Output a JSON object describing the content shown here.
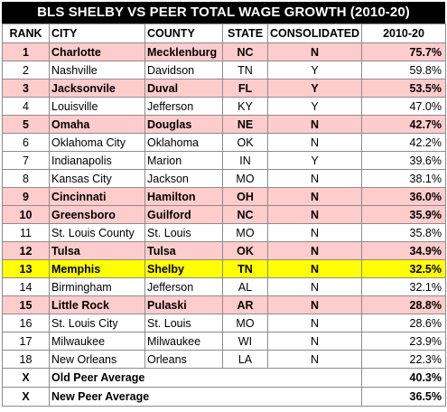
{
  "title": "BLS SHELBY VS PEER TOTAL WAGE GROWTH (2010-20)",
  "headers": {
    "rank": "RANK",
    "city": "CITY",
    "county": "COUNTY",
    "state": "STATE",
    "consolidated": "CONSOLIDATED",
    "growth": "2010-20"
  },
  "rows": [
    {
      "rank": "1",
      "city": "Charlotte",
      "county": "Mecklenburg",
      "state": "NC",
      "consolidated": "N",
      "growth": "75.7%",
      "style": "pink"
    },
    {
      "rank": "2",
      "city": "Nashville",
      "county": "Davidson",
      "state": "TN",
      "consolidated": "Y",
      "growth": "59.8%",
      "style": "plain"
    },
    {
      "rank": "3",
      "city": "Jacksonvile",
      "county": "Duval",
      "state": "FL",
      "consolidated": "Y",
      "growth": "53.5%",
      "style": "pink"
    },
    {
      "rank": "4",
      "city": "Louisville",
      "county": "Jefferson",
      "state": "KY",
      "consolidated": "Y",
      "growth": "47.0%",
      "style": "plain"
    },
    {
      "rank": "5",
      "city": "Omaha",
      "county": "Douglas",
      "state": "NE",
      "consolidated": "N",
      "growth": "42.7%",
      "style": "pink"
    },
    {
      "rank": "6",
      "city": "Oklahoma City",
      "county": "Oklahoma",
      "state": "OK",
      "consolidated": "N",
      "growth": "42.2%",
      "style": "plain"
    },
    {
      "rank": "7",
      "city": "Indianapolis",
      "county": "Marion",
      "state": "IN",
      "consolidated": "Y",
      "growth": "39.6%",
      "style": "plain"
    },
    {
      "rank": "8",
      "city": "Kansas City",
      "county": "Jackson",
      "state": "MO",
      "consolidated": "N",
      "growth": "38.1%",
      "style": "plain"
    },
    {
      "rank": "9",
      "city": "Cincinnati",
      "county": "Hamilton",
      "state": "OH",
      "consolidated": "N",
      "growth": "36.0%",
      "style": "pink"
    },
    {
      "rank": "10",
      "city": "Greensboro",
      "county": "Guilford",
      "state": "NC",
      "consolidated": "N",
      "growth": "35.9%",
      "style": "pink"
    },
    {
      "rank": "11",
      "city": "St. Louis County",
      "county": "St. Louis",
      "state": "MO",
      "consolidated": "N",
      "growth": "35.8%",
      "style": "plain"
    },
    {
      "rank": "12",
      "city": "Tulsa",
      "county": "Tulsa",
      "state": "OK",
      "consolidated": "N",
      "growth": "34.9%",
      "style": "pink"
    },
    {
      "rank": "13",
      "city": "Memphis",
      "county": "Shelby",
      "state": "TN",
      "consolidated": "N",
      "growth": "32.5%",
      "style": "yellow"
    },
    {
      "rank": "14",
      "city": "Birmingham",
      "county": "Jefferson",
      "state": "AL",
      "consolidated": "N",
      "growth": "32.1%",
      "style": "plain"
    },
    {
      "rank": "15",
      "city": "Little Rock",
      "county": "Pulaski",
      "state": "AR",
      "consolidated": "N",
      "growth": "28.8%",
      "style": "pink"
    },
    {
      "rank": "16",
      "city": "St. Louis City",
      "county": "St. Louis",
      "state": "MO",
      "consolidated": "N",
      "growth": "28.6%",
      "style": "plain"
    },
    {
      "rank": "17",
      "city": "Milwaukee",
      "county": "Milwaukee",
      "state": "WI",
      "consolidated": "N",
      "growth": "23.9%",
      "style": "plain"
    },
    {
      "rank": "18",
      "city": "New Orleans",
      "county": "Orleans",
      "state": "LA",
      "consolidated": "N",
      "growth": "22.3%",
      "style": "plain"
    }
  ],
  "averages": [
    {
      "rank": "X",
      "label": "Old Peer Average",
      "growth": "40.3%"
    },
    {
      "rank": "X",
      "label": "New Peer Average",
      "growth": "36.5%"
    }
  ],
  "colors": {
    "highlight_peer": "#ffcccc",
    "highlight_shelby": "#ffff00",
    "title_bg": "#000000"
  }
}
